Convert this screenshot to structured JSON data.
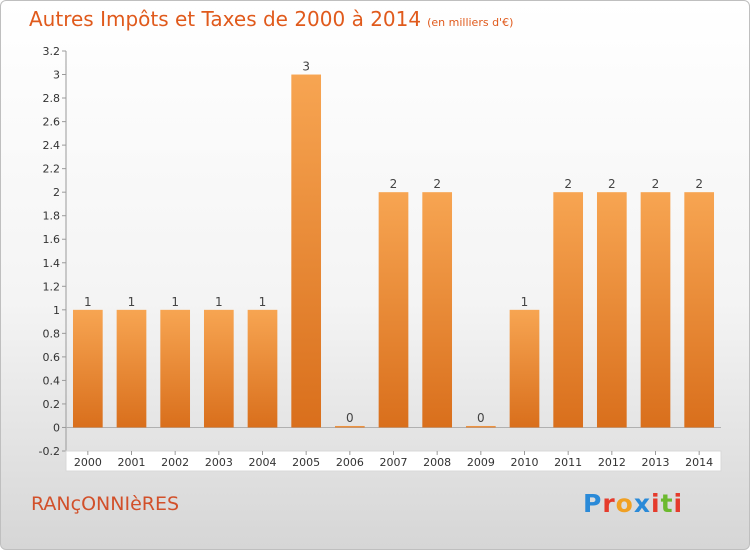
{
  "header": {
    "title": "Autres Impôts et Taxes de 2000 à 2014",
    "unit": "(en milliers d'€)"
  },
  "footer": {
    "town": "RANçONNIèRES",
    "logo_letters": [
      "P",
      "r",
      "o",
      "x",
      "i",
      "t",
      "i"
    ]
  },
  "colors": {
    "title": "#e05a1c",
    "bar_light": "#f7a552",
    "bar_dark": "#d96f1c",
    "logo": [
      "#2a8ad8",
      "#e53b2c",
      "#f0a023",
      "#2a8ad8",
      "#e53b2c",
      "#6cb92f",
      "#e53b2c"
    ]
  },
  "chart_data": {
    "type": "bar",
    "categories": [
      "2000",
      "2001",
      "2002",
      "2003",
      "2004",
      "2005",
      "2006",
      "2007",
      "2008",
      "2009",
      "2010",
      "2011",
      "2012",
      "2013",
      "2014"
    ],
    "values": [
      1,
      1,
      1,
      1,
      1,
      3,
      0,
      2,
      2,
      0,
      1,
      2,
      2,
      2,
      2
    ],
    "value_labels": [
      "1",
      "1",
      "1",
      "1",
      "1",
      "3",
      "0",
      "2",
      "2",
      "0",
      "1",
      "2",
      "2",
      "2",
      "2"
    ],
    "ylim": [
      -0.2,
      3.2
    ],
    "yticks": [
      -0.2,
      0,
      0.2,
      0.4,
      0.6,
      0.8,
      1,
      1.2,
      1.4,
      1.6,
      1.8,
      2,
      2.2,
      2.4,
      2.6,
      2.8,
      3,
      3.2
    ],
    "ytick_labels": [
      "-0.2",
      "0",
      "0.2",
      "0.4",
      "0.6",
      "0.8",
      "1",
      "1.2",
      "1.4",
      "1.6",
      "1.8",
      "2",
      "2.2",
      "2.4",
      "2.6",
      "2.8",
      "3",
      "3.2"
    ],
    "grid": false,
    "xlabel": "",
    "ylabel": ""
  }
}
